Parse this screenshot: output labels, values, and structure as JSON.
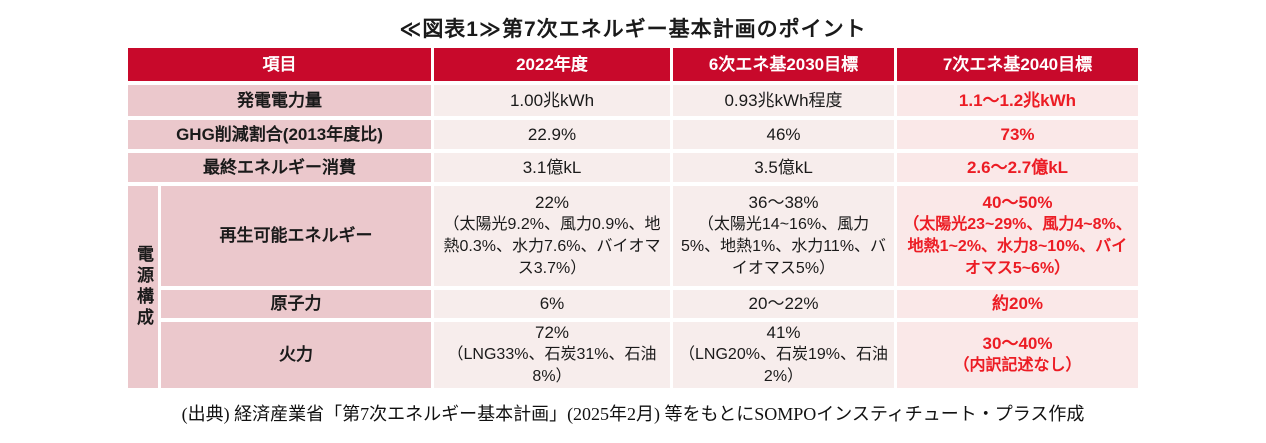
{
  "title": "≪図表1≫第7次エネルギー基本計画のポイント",
  "colors": {
    "header_red": "#c8092b",
    "target_text_red": "#ec1c24",
    "label_pink": "#ebc8cc",
    "cell_pink": "#f7edec",
    "cell_pink_2040": "#fae8e8"
  },
  "table": {
    "header": {
      "col_item": "項目",
      "col_2022": "2022年度",
      "col_2030": "6次エネ基2030目標",
      "col_2040": "7次エネ基2040目標"
    },
    "group_label": "電源構成",
    "rows": [
      {
        "label": "発電電力量",
        "c2022": {
          "main": "1.00兆kWh",
          "sub": ""
        },
        "c2030": {
          "main": "0.93兆kWh程度",
          "sub": ""
        },
        "c2040": {
          "main": "1.1〜1.2兆kWh",
          "sub": ""
        }
      },
      {
        "label": "GHG削減割合(2013年度比)",
        "c2022": {
          "main": "22.9%",
          "sub": ""
        },
        "c2030": {
          "main": "46%",
          "sub": ""
        },
        "c2040": {
          "main": "73%",
          "sub": ""
        }
      },
      {
        "label": "最終エネルギー消費",
        "c2022": {
          "main": "3.1億kL",
          "sub": ""
        },
        "c2030": {
          "main": "3.5億kL",
          "sub": ""
        },
        "c2040": {
          "main": "2.6〜2.7億kL",
          "sub": ""
        }
      },
      {
        "label": "再生可能エネルギー",
        "c2022": {
          "main": "22%",
          "sub": "（太陽光9.2%、風力0.9%、地熱0.3%、水力7.6%、バイオマス3.7%）"
        },
        "c2030": {
          "main": "36〜38%",
          "sub": "（太陽光14~16%、風力5%、地熱1%、水力11%、バイオマス5%）"
        },
        "c2040": {
          "main": "40〜50%",
          "sub": "（太陽光23~29%、風力4~8%、地熱1~2%、水力8~10%、バイオマス5~6%）"
        }
      },
      {
        "label": "原子力",
        "c2022": {
          "main": "6%",
          "sub": ""
        },
        "c2030": {
          "main": "20〜22%",
          "sub": ""
        },
        "c2040": {
          "main": "約20%",
          "sub": ""
        }
      },
      {
        "label": "火力",
        "c2022": {
          "main": "72%",
          "sub": "（LNG33%、石炭31%、石油8%）"
        },
        "c2030": {
          "main": "41%",
          "sub": "（LNG20%、石炭19%、石油2%）"
        },
        "c2040": {
          "main": "30〜40%",
          "sub": "（内訳記述なし）"
        }
      }
    ]
  },
  "source": "(出典) 経済産業省「第7次エネルギー基本計画」(2025年2月) 等をもとにSOMPOインスティチュート・プラス作成"
}
